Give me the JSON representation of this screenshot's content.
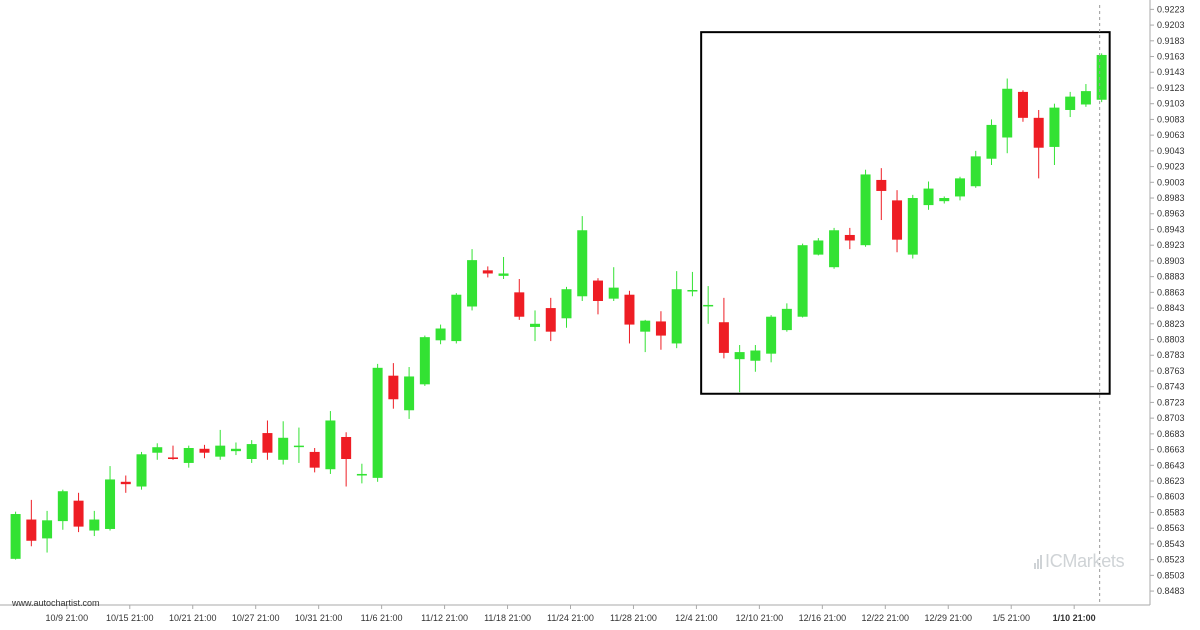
{
  "watermark": "www.autochartist.com",
  "logo": "ICMarkets",
  "logo_icon": "bars-logo-icon",
  "colors": {
    "up": "#33e233",
    "down": "#ee1d24",
    "frame": "#000000",
    "axis": "#999999",
    "text": "#333333"
  },
  "chart_data": {
    "type": "candlestick",
    "y_ticks": [
      "0.9223",
      "0.9203",
      "0.9183",
      "0.9163",
      "0.9143",
      "0.9123",
      "0.9103",
      "0.9083",
      "0.9063",
      "0.9043",
      "0.9023",
      "0.9003",
      "0.8983",
      "0.8963",
      "0.8943",
      "0.8923",
      "0.8903",
      "0.8883",
      "0.8863",
      "0.8843",
      "0.8823",
      "0.8803",
      "0.8783",
      "0.8763",
      "0.8743",
      "0.8723",
      "0.8703",
      "0.8683",
      "0.8663",
      "0.8643",
      "0.8623",
      "0.8603",
      "0.8583",
      "0.8563",
      "0.8543",
      "0.8523",
      "0.8503",
      "0.8483"
    ],
    "ylim": [
      0.8478,
      0.9226
    ],
    "x_labels": [
      {
        "label": "10/9 21:00",
        "at": 3
      },
      {
        "label": "10/15 21:00",
        "at": 7
      },
      {
        "label": "10/21 21:00",
        "at": 11
      },
      {
        "label": "10/27 21:00",
        "at": 15
      },
      {
        "label": "10/31 21:00",
        "at": 19
      },
      {
        "label": "11/6 21:00",
        "at": 23
      },
      {
        "label": "11/12 21:00",
        "at": 27
      },
      {
        "label": "11/18 21:00",
        "at": 31
      },
      {
        "label": "11/24 21:00",
        "at": 35
      },
      {
        "label": "11/28 21:00",
        "at": 39
      },
      {
        "label": "12/4 21:00",
        "at": 43
      },
      {
        "label": "12/10 21:00",
        "at": 47
      },
      {
        "label": "12/16 21:00",
        "at": 51
      },
      {
        "label": "12/22 21:00",
        "at": 55
      },
      {
        "label": "12/29 21:00",
        "at": 59
      },
      {
        "label": "1/5 21:00",
        "at": 63
      },
      {
        "label": "1/10 21:00",
        "at": 67,
        "bold": true
      }
    ],
    "candles": [
      {
        "o": 0.8524,
        "h": 0.8584,
        "l": 0.8523,
        "c": 0.8581
      },
      {
        "o": 0.8574,
        "h": 0.8599,
        "l": 0.854,
        "c": 0.8547
      },
      {
        "o": 0.855,
        "h": 0.8585,
        "l": 0.8532,
        "c": 0.8573
      },
      {
        "o": 0.8572,
        "h": 0.8612,
        "l": 0.8561,
        "c": 0.861
      },
      {
        "o": 0.8598,
        "h": 0.8608,
        "l": 0.8558,
        "c": 0.8565
      },
      {
        "o": 0.856,
        "h": 0.8585,
        "l": 0.8553,
        "c": 0.8574
      },
      {
        "o": 0.8562,
        "h": 0.8642,
        "l": 0.856,
        "c": 0.8625
      },
      {
        "o": 0.8622,
        "h": 0.863,
        "l": 0.8608,
        "c": 0.8619
      },
      {
        "o": 0.8616,
        "h": 0.866,
        "l": 0.8612,
        "c": 0.8657
      },
      {
        "o": 0.8659,
        "h": 0.8671,
        "l": 0.865,
        "c": 0.8666
      },
      {
        "o": 0.8653,
        "h": 0.8668,
        "l": 0.865,
        "c": 0.8651
      },
      {
        "o": 0.8646,
        "h": 0.8668,
        "l": 0.864,
        "c": 0.8665
      },
      {
        "o": 0.8664,
        "h": 0.8669,
        "l": 0.8652,
        "c": 0.8659
      },
      {
        "o": 0.8654,
        "h": 0.8688,
        "l": 0.865,
        "c": 0.8668
      },
      {
        "o": 0.8661,
        "h": 0.8672,
        "l": 0.8656,
        "c": 0.8664
      },
      {
        "o": 0.8651,
        "h": 0.8675,
        "l": 0.8646,
        "c": 0.867
      },
      {
        "o": 0.8684,
        "h": 0.87,
        "l": 0.865,
        "c": 0.8659
      },
      {
        "o": 0.865,
        "h": 0.8699,
        "l": 0.8644,
        "c": 0.8678
      },
      {
        "o": 0.8667,
        "h": 0.8691,
        "l": 0.8646,
        "c": 0.8668
      },
      {
        "o": 0.866,
        "h": 0.8665,
        "l": 0.8634,
        "c": 0.864
      },
      {
        "o": 0.8638,
        "h": 0.8712,
        "l": 0.8632,
        "c": 0.87
      },
      {
        "o": 0.8679,
        "h": 0.8685,
        "l": 0.8616,
        "c": 0.8651
      },
      {
        "o": 0.863,
        "h": 0.8645,
        "l": 0.862,
        "c": 0.8632
      },
      {
        "o": 0.8627,
        "h": 0.8772,
        "l": 0.8622,
        "c": 0.8767
      },
      {
        "o": 0.8757,
        "h": 0.8773,
        "l": 0.8715,
        "c": 0.8727
      },
      {
        "o": 0.8713,
        "h": 0.8768,
        "l": 0.8702,
        "c": 0.8756
      },
      {
        "o": 0.8746,
        "h": 0.8808,
        "l": 0.8744,
        "c": 0.8806
      },
      {
        "o": 0.8802,
        "h": 0.8822,
        "l": 0.8797,
        "c": 0.8817
      },
      {
        "o": 0.8801,
        "h": 0.8862,
        "l": 0.8798,
        "c": 0.886
      },
      {
        "o": 0.8845,
        "h": 0.8918,
        "l": 0.884,
        "c": 0.8904
      },
      {
        "o": 0.8891,
        "h": 0.8896,
        "l": 0.8882,
        "c": 0.8887
      },
      {
        "o": 0.8884,
        "h": 0.8908,
        "l": 0.888,
        "c": 0.8887
      },
      {
        "o": 0.8863,
        "h": 0.888,
        "l": 0.8828,
        "c": 0.8832
      },
      {
        "o": 0.8819,
        "h": 0.884,
        "l": 0.8801,
        "c": 0.8823
      },
      {
        "o": 0.8843,
        "h": 0.8856,
        "l": 0.8801,
        "c": 0.8813
      },
      {
        "o": 0.883,
        "h": 0.887,
        "l": 0.8818,
        "c": 0.8867
      },
      {
        "o": 0.8858,
        "h": 0.896,
        "l": 0.8852,
        "c": 0.8942
      },
      {
        "o": 0.8878,
        "h": 0.8881,
        "l": 0.8835,
        "c": 0.8852
      },
      {
        "o": 0.8855,
        "h": 0.8895,
        "l": 0.8852,
        "c": 0.8869
      },
      {
        "o": 0.886,
        "h": 0.8865,
        "l": 0.8798,
        "c": 0.8822
      },
      {
        "o": 0.8813,
        "h": 0.8828,
        "l": 0.8787,
        "c": 0.8827
      },
      {
        "o": 0.8826,
        "h": 0.8839,
        "l": 0.879,
        "c": 0.8808
      },
      {
        "o": 0.8798,
        "h": 0.889,
        "l": 0.8792,
        "c": 0.8867
      },
      {
        "o": 0.8866,
        "h": 0.8889,
        "l": 0.8858,
        "c": 0.8866
      },
      {
        "o": 0.8847,
        "h": 0.8871,
        "l": 0.8823,
        "c": 0.8847
      },
      {
        "o": 0.8825,
        "h": 0.8856,
        "l": 0.8779,
        "c": 0.8786
      },
      {
        "o": 0.8778,
        "h": 0.8796,
        "l": 0.8736,
        "c": 0.8787
      },
      {
        "o": 0.8776,
        "h": 0.8796,
        "l": 0.8762,
        "c": 0.8789
      },
      {
        "o": 0.8785,
        "h": 0.8834,
        "l": 0.8774,
        "c": 0.8832
      },
      {
        "o": 0.8815,
        "h": 0.8849,
        "l": 0.8813,
        "c": 0.8842
      },
      {
        "o": 0.8832,
        "h": 0.8925,
        "l": 0.8831,
        "c": 0.8923
      },
      {
        "o": 0.8911,
        "h": 0.8932,
        "l": 0.891,
        "c": 0.8929
      },
      {
        "o": 0.8895,
        "h": 0.8945,
        "l": 0.8893,
        "c": 0.8942
      },
      {
        "o": 0.8936,
        "h": 0.8945,
        "l": 0.8918,
        "c": 0.8929
      },
      {
        "o": 0.8923,
        "h": 0.9019,
        "l": 0.8921,
        "c": 0.9013
      },
      {
        "o": 0.9006,
        "h": 0.9021,
        "l": 0.8955,
        "c": 0.8992
      },
      {
        "o": 0.898,
        "h": 0.8993,
        "l": 0.8914,
        "c": 0.893
      },
      {
        "o": 0.8911,
        "h": 0.8987,
        "l": 0.8906,
        "c": 0.8983
      },
      {
        "o": 0.8974,
        "h": 0.9004,
        "l": 0.8968,
        "c": 0.8995
      },
      {
        "o": 0.8979,
        "h": 0.8985,
        "l": 0.8976,
        "c": 0.8983
      },
      {
        "o": 0.8985,
        "h": 0.901,
        "l": 0.898,
        "c": 0.9008
      },
      {
        "o": 0.8998,
        "h": 0.9043,
        "l": 0.8996,
        "c": 0.9036
      },
      {
        "o": 0.9033,
        "h": 0.9083,
        "l": 0.9025,
        "c": 0.9076
      },
      {
        "o": 0.906,
        "h": 0.9135,
        "l": 0.904,
        "c": 0.9122
      },
      {
        "o": 0.9118,
        "h": 0.912,
        "l": 0.908,
        "c": 0.9085
      },
      {
        "o": 0.9085,
        "h": 0.9095,
        "l": 0.9008,
        "c": 0.9047
      },
      {
        "o": 0.9048,
        "h": 0.9103,
        "l": 0.9025,
        "c": 0.9098
      },
      {
        "o": 0.9095,
        "h": 0.9118,
        "l": 0.9086,
        "c": 0.9112
      },
      {
        "o": 0.9102,
        "h": 0.9128,
        "l": 0.9099,
        "c": 0.9119
      },
      {
        "o": 0.9108,
        "h": 0.9167,
        "l": 0.9105,
        "c": 0.9165
      }
    ],
    "pattern_box": {
      "from": 44,
      "to": 69,
      "high": 0.9194,
      "low": 0.8734
    },
    "marker_at": 69
  }
}
